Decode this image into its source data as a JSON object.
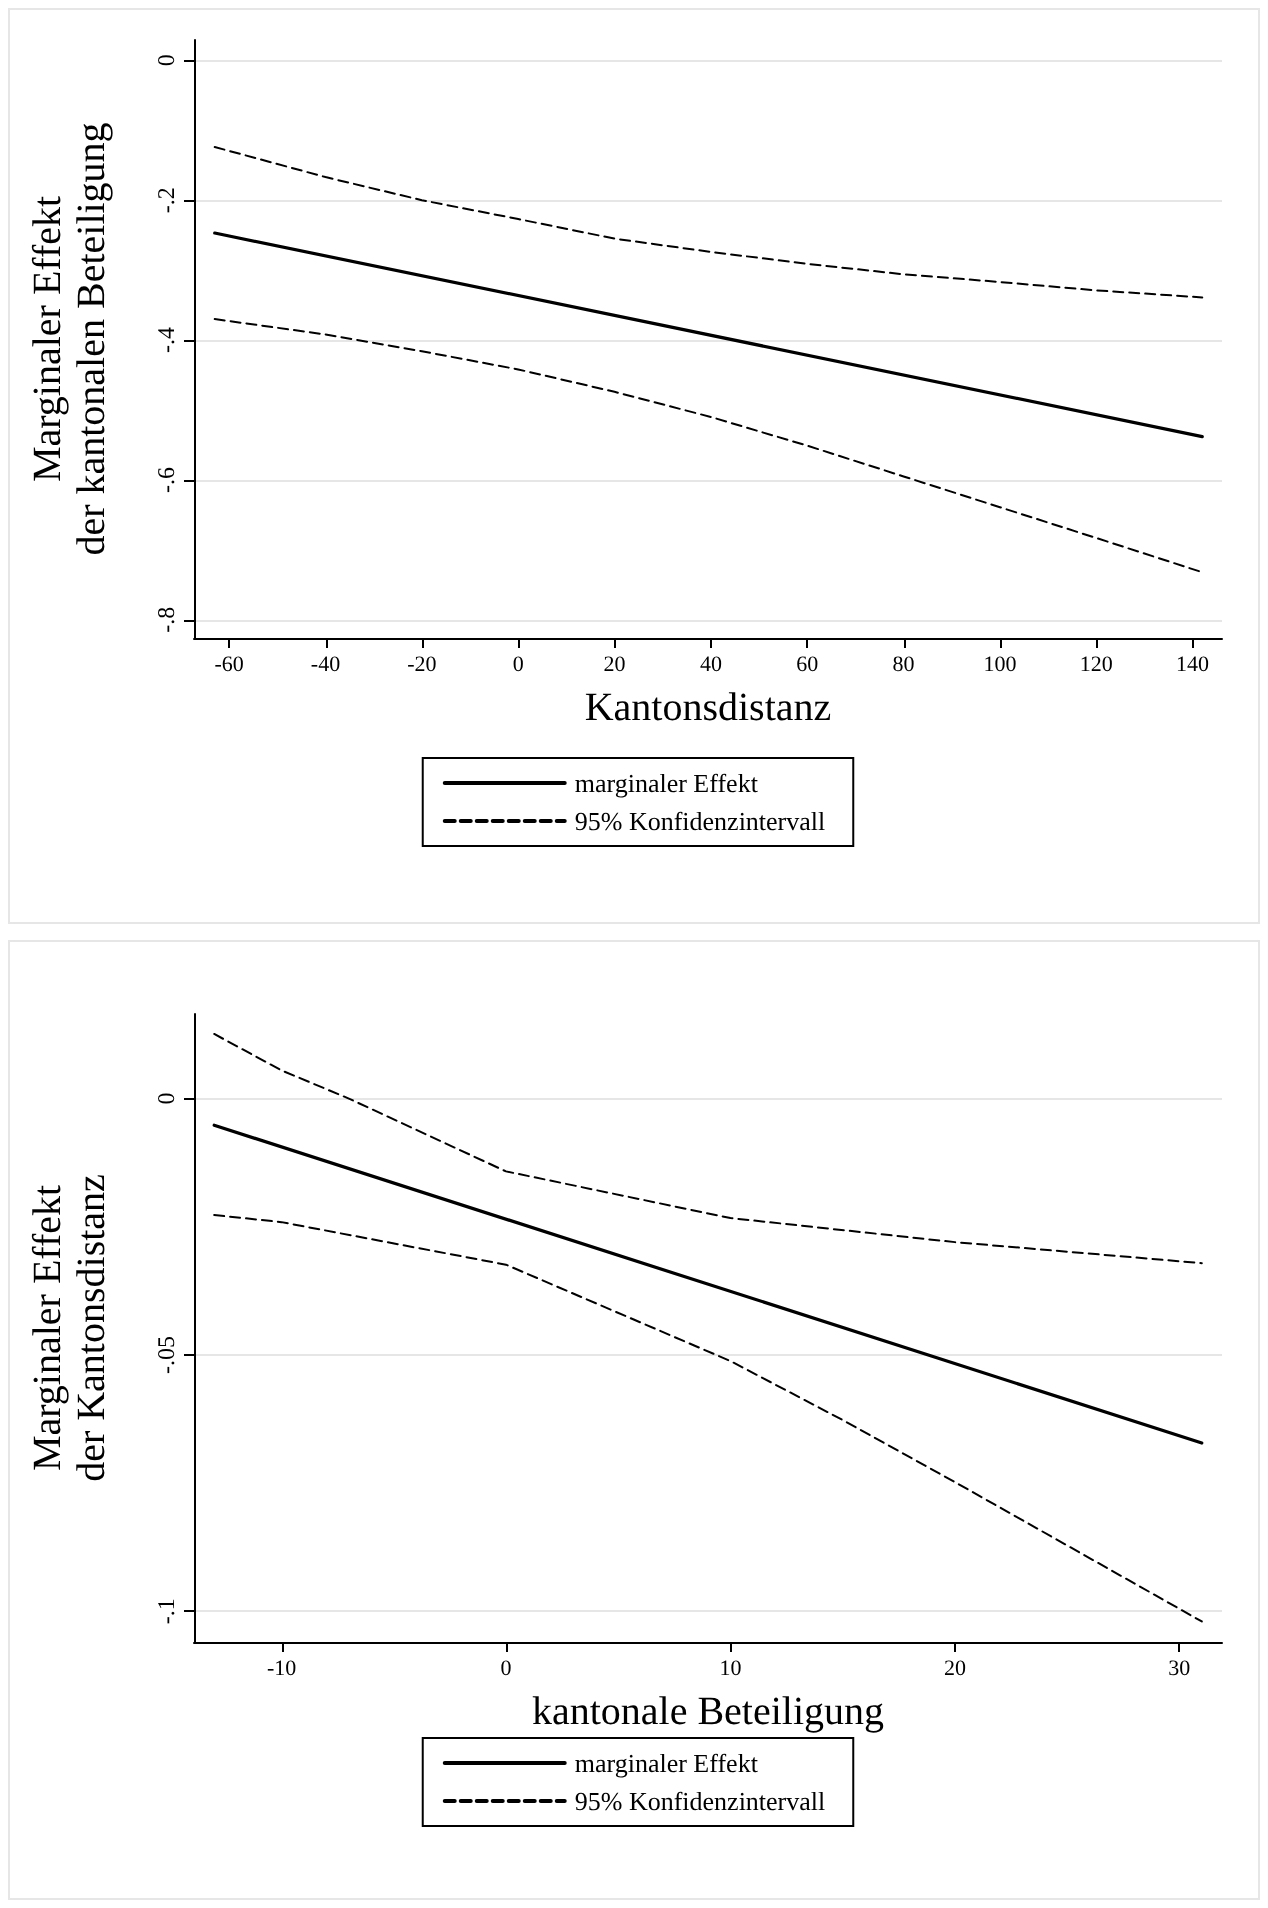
{
  "chart_data": [
    {
      "type": "line",
      "xlabel": "Kantonsdistanz",
      "ylabel": "Marginaler Effekt\nder kantonalen Beteiligung",
      "xlim": [
        -67.3,
        146.1
      ],
      "xticks": [
        -60,
        -40,
        -20,
        0,
        20,
        40,
        60,
        80,
        100,
        120,
        140
      ],
      "ylim": [
        -0.826,
        0.029
      ],
      "yticks": [
        {
          "value": 0,
          "label": "0"
        },
        {
          "value": -0.2,
          "label": "-.2"
        },
        {
          "value": -0.4,
          "label": "-.4"
        },
        {
          "value": -0.6,
          "label": "-.6"
        },
        {
          "value": -0.8,
          "label": "-.8"
        }
      ],
      "grid": "y",
      "legend": "bottom",
      "marker": "none",
      "series": [
        {
          "name": "marginaler Effekt",
          "color": "#000000",
          "line_style": "solid",
          "x": [
            -63,
            142
          ],
          "values": [
            -0.247,
            -0.538
          ]
        },
        {
          "name": "95% Konfidenzintervall",
          "color": "#000000",
          "line_style": "dashed",
          "x": [
            -63,
            -40,
            -20,
            0,
            20,
            40,
            60,
            80,
            100,
            120,
            142
          ],
          "values": [
            -0.124,
            -0.167,
            -0.2,
            -0.227,
            -0.255,
            -0.274,
            -0.291,
            -0.306,
            -0.317,
            -0.329,
            -0.339
          ]
        },
        {
          "color": "#000000",
          "line_style": "dashed",
          "x": [
            -63,
            -40,
            -20,
            0,
            20,
            40,
            60,
            80,
            100,
            120,
            142
          ],
          "values": [
            -0.37,
            -0.392,
            -0.416,
            -0.442,
            -0.474,
            -0.51,
            -0.551,
            -0.595,
            -0.639,
            -0.683,
            -0.732
          ]
        }
      ]
    },
    {
      "type": "line",
      "xlabel": "kantonale Beteiligung",
      "ylabel": "Marginaler Effekt\nder Kantonsdistanz",
      "xlim": [
        -13.9,
        31.9
      ],
      "xticks": [
        -10,
        0,
        10,
        20,
        30
      ],
      "ylim": [
        -0.106,
        0.0165
      ],
      "yticks": [
        {
          "value": 0,
          "label": "0"
        },
        {
          "value": -0.05,
          "label": "-.05"
        },
        {
          "value": -0.1,
          "label": "-.1"
        }
      ],
      "grid": "y",
      "legend": "bottom",
      "marker": "none",
      "series": [
        {
          "name": "marginaler Effekt",
          "color": "#000000",
          "line_style": "solid",
          "x": [
            -13,
            31
          ],
          "values": [
            -0.0052,
            -0.0672
          ]
        },
        {
          "name": "95% Konfidenzintervall",
          "color": "#000000",
          "line_style": "dashed",
          "x": [
            -13,
            -10,
            -7,
            0,
            10,
            20,
            31
          ],
          "values": [
            0.0126,
            0.0055,
            0.0,
            -0.0142,
            -0.0233,
            -0.028,
            -0.0321
          ]
        },
        {
          "color": "#000000",
          "line_style": "dashed",
          "x": [
            -13,
            -10,
            0,
            10,
            15,
            20,
            31
          ],
          "values": [
            -0.0227,
            -0.0241,
            -0.0324,
            -0.0512,
            -0.0627,
            -0.0748,
            -0.102
          ]
        }
      ]
    }
  ]
}
